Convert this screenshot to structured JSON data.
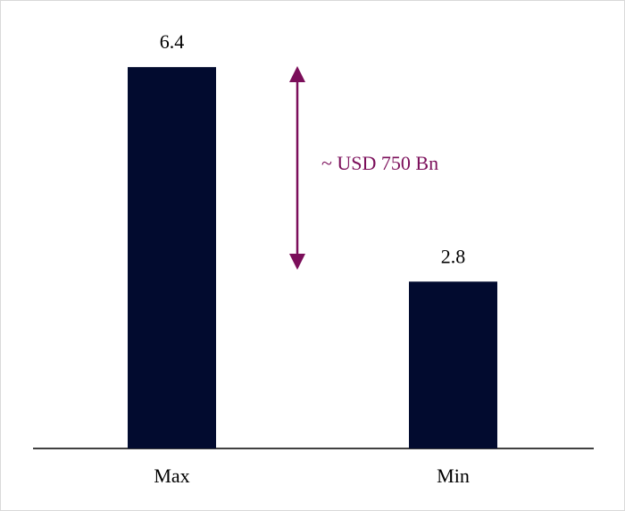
{
  "chart_data": {
    "type": "bar",
    "categories": [
      "Max",
      "Min"
    ],
    "values": [
      6.4,
      2.8
    ],
    "color": "#020b2f",
    "annotation": "~ USD 750 Bn",
    "annotation_color": "#7b0e5a"
  }
}
